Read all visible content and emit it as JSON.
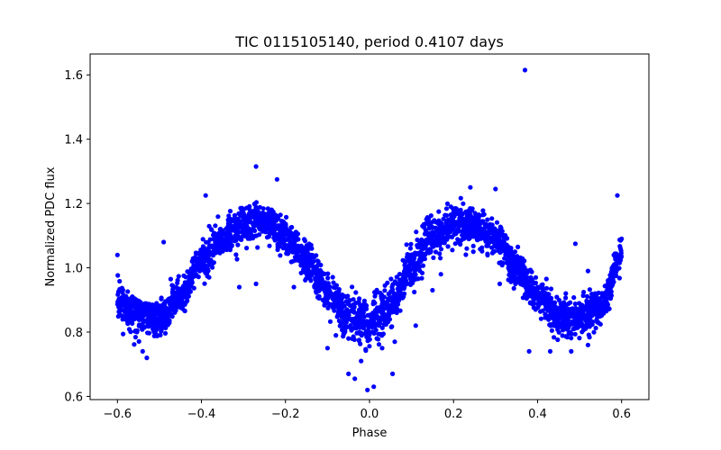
{
  "chart_data": {
    "type": "scatter",
    "title": "TIC 0115105140, period 0.4107 days",
    "xlabel": "Phase",
    "ylabel": "Normalized PDC flux",
    "xlim": [
      -0.665,
      0.665
    ],
    "ylim": [
      0.59,
      1.665
    ],
    "x_ticks": [
      -0.6,
      -0.4,
      -0.2,
      0.0,
      0.2,
      0.4,
      0.6
    ],
    "x_tick_labels": [
      "−0.6",
      "−0.4",
      "−0.2",
      "0.0",
      "0.2",
      "0.4",
      "0.6"
    ],
    "y_ticks": [
      0.6,
      0.8,
      1.0,
      1.2,
      1.4,
      1.6
    ],
    "y_tick_labels": [
      "0.6",
      "0.8",
      "1.0",
      "1.2",
      "1.4",
      "1.6"
    ],
    "grid": false,
    "marker_color": "#0000ff",
    "trend": {
      "description_points": [
        {
          "x": -0.6,
          "y": 0.9
        },
        {
          "x": -0.55,
          "y": 0.85
        },
        {
          "x": -0.5,
          "y": 0.84
        },
        {
          "x": -0.45,
          "y": 0.91
        },
        {
          "x": -0.4,
          "y": 1.02
        },
        {
          "x": -0.35,
          "y": 1.09
        },
        {
          "x": -0.3,
          "y": 1.13
        },
        {
          "x": -0.25,
          "y": 1.14
        },
        {
          "x": -0.2,
          "y": 1.1
        },
        {
          "x": -0.15,
          "y": 1.02
        },
        {
          "x": -0.1,
          "y": 0.92
        },
        {
          "x": -0.05,
          "y": 0.85
        },
        {
          "x": 0.0,
          "y": 0.83
        },
        {
          "x": 0.05,
          "y": 0.88
        },
        {
          "x": 0.1,
          "y": 1.0
        },
        {
          "x": 0.15,
          "y": 1.1
        },
        {
          "x": 0.2,
          "y": 1.14
        },
        {
          "x": 0.25,
          "y": 1.13
        },
        {
          "x": 0.3,
          "y": 1.09
        },
        {
          "x": 0.35,
          "y": 1.0
        },
        {
          "x": 0.4,
          "y": 0.91
        },
        {
          "x": 0.45,
          "y": 0.85
        },
        {
          "x": 0.5,
          "y": 0.84
        },
        {
          "x": 0.55,
          "y": 0.88
        },
        {
          "x": 0.6,
          "y": 1.03
        }
      ]
    },
    "outliers": [
      {
        "x": 0.37,
        "y": 1.615
      },
      {
        "x": -0.27,
        "y": 1.315
      },
      {
        "x": -0.22,
        "y": 1.275
      },
      {
        "x": -0.39,
        "y": 1.225
      },
      {
        "x": 0.59,
        "y": 1.225
      },
      {
        "x": 0.24,
        "y": 1.25
      },
      {
        "x": 0.3,
        "y": 1.245
      },
      {
        "x": -0.05,
        "y": 0.67
      },
      {
        "x": -0.035,
        "y": 0.655
      },
      {
        "x": -0.005,
        "y": 0.62
      },
      {
        "x": 0.01,
        "y": 0.63
      },
      {
        "x": 0.055,
        "y": 0.67
      },
      {
        "x": -0.02,
        "y": 0.71
      },
      {
        "x": -0.1,
        "y": 0.75
      },
      {
        "x": 0.11,
        "y": 0.82
      },
      {
        "x": 0.52,
        "y": 0.99
      },
      {
        "x": -0.49,
        "y": 1.08
      },
      {
        "x": 0.49,
        "y": 1.075
      },
      {
        "x": -0.6,
        "y": 1.04
      },
      {
        "x": 0.6,
        "y": 1.09
      },
      {
        "x": -0.53,
        "y": 0.72
      },
      {
        "x": -0.54,
        "y": 0.74
      },
      {
        "x": 0.48,
        "y": 0.74
      },
      {
        "x": 0.43,
        "y": 0.74
      },
      {
        "x": 0.38,
        "y": 0.74
      },
      {
        "x": 0.52,
        "y": 0.76
      },
      {
        "x": -0.27,
        "y": 0.95
      },
      {
        "x": -0.31,
        "y": 0.94
      },
      {
        "x": 0.15,
        "y": 0.93
      },
      {
        "x": 0.17,
        "y": 0.98
      },
      {
        "x": 0.31,
        "y": 0.95
      },
      {
        "x": 0.36,
        "y": 0.97
      },
      {
        "x": -0.18,
        "y": 0.94
      },
      {
        "x": -0.05,
        "y": 0.78
      },
      {
        "x": 0.03,
        "y": 0.75
      },
      {
        "x": 0.06,
        "y": 0.77
      },
      {
        "x": -0.08,
        "y": 0.79
      }
    ]
  }
}
